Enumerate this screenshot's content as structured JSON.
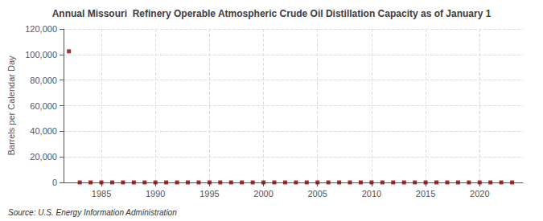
{
  "chart_data": {
    "type": "scatter",
    "title": "Annual Missouri  Refinery Operable Atmospheric Crude Oil Distillation Capacity as of January 1",
    "ylabel": "Barrels per Calendar Day",
    "annotation": "Source: U.S. Energy Information Administration",
    "color": "#8b0000",
    "marker": "square",
    "grid": true,
    "xlim": [
      1981.5,
      2024
    ],
    "xticks": [
      1985,
      1990,
      1995,
      2000,
      2005,
      2010,
      2015,
      2020
    ],
    "ylim": [
      0,
      120000
    ],
    "yticks": [
      0,
      {
        "value": 20000,
        "label": "20,000"
      },
      {
        "value": 40000,
        "label": "40,000"
      },
      {
        "value": 60000,
        "label": "60,000"
      },
      {
        "value": 80000,
        "label": "80,000"
      },
      {
        "value": 100000,
        "label": "100,000"
      },
      {
        "value": 120000,
        "label": "120,000"
      }
    ],
    "x": [
      1982,
      1983,
      1984,
      1985,
      1986,
      1987,
      1988,
      1989,
      1990,
      1991,
      1992,
      1993,
      1994,
      1995,
      1996,
      1997,
      1998,
      1999,
      2000,
      2001,
      2002,
      2003,
      2004,
      2005,
      2006,
      2007,
      2008,
      2009,
      2010,
      2011,
      2012,
      2013,
      2014,
      2015,
      2016,
      2017,
      2018,
      2019,
      2020,
      2021,
      2022,
      2023
    ],
    "values": [
      102500,
      0,
      0,
      0,
      0,
      0,
      0,
      0,
      0,
      0,
      0,
      0,
      0,
      0,
      0,
      0,
      0,
      0,
      0,
      0,
      0,
      0,
      0,
      0,
      0,
      0,
      0,
      0,
      0,
      0,
      0,
      0,
      0,
      0,
      0,
      0,
      0,
      0,
      0,
      0,
      0,
      0
    ]
  }
}
